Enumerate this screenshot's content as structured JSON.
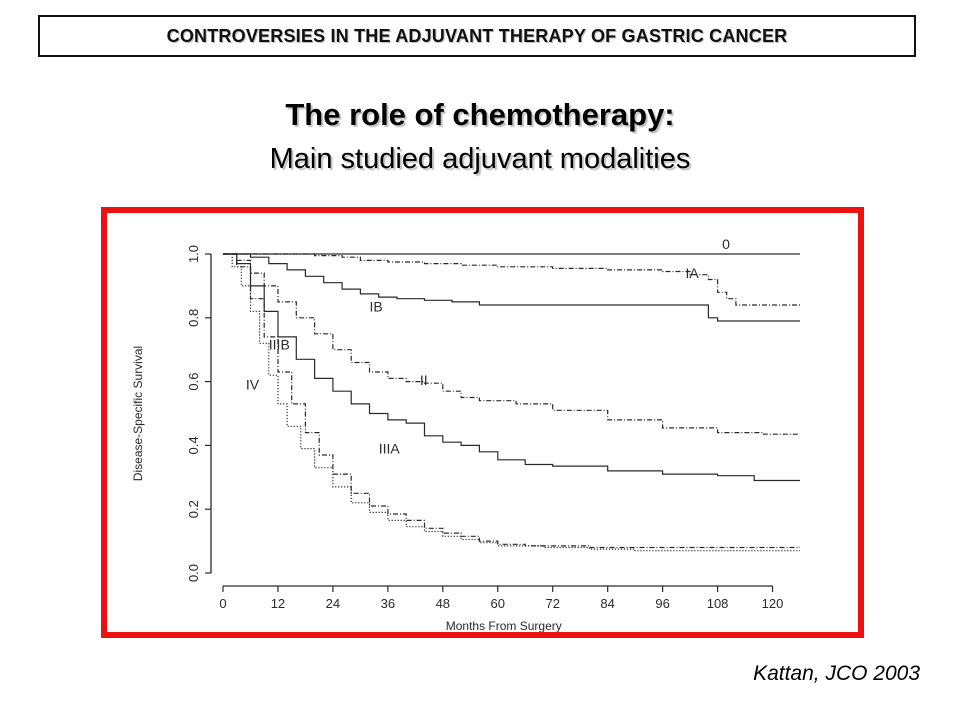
{
  "header": {
    "text": "CONTROVERSIES IN THE ADJUVANT THERAPY OF GASTRIC CANCER"
  },
  "title": "The role of chemotherapy:",
  "subtitle": "Main studied adjuvant modalities",
  "citation": "Kattan, JCO 2003",
  "chart_data": {
    "type": "line",
    "xlabel": "Months From Surgery",
    "ylabel": "Disease-Specific Survival",
    "xlim": [
      0,
      126
    ],
    "ylim": [
      0,
      1.0
    ],
    "x_ticks": [
      0,
      12,
      24,
      36,
      48,
      60,
      72,
      84,
      96,
      108,
      120
    ],
    "y_ticks": [
      "0.0",
      "0.2",
      "0.4",
      "0.6",
      "0.8",
      "1.0"
    ],
    "grid": false,
    "series": [
      {
        "name": "0",
        "style": "solid",
        "points": [
          [
            0,
            1.0
          ],
          [
            126,
            1.0
          ]
        ]
      },
      {
        "name": "IA",
        "style": "dashdot",
        "points": [
          [
            0,
            1.0
          ],
          [
            20,
            0.995
          ],
          [
            26,
            0.99
          ],
          [
            30,
            0.98
          ],
          [
            36,
            0.975
          ],
          [
            44,
            0.97
          ],
          [
            52,
            0.965
          ],
          [
            60,
            0.96
          ],
          [
            72,
            0.955
          ],
          [
            84,
            0.95
          ],
          [
            96,
            0.945
          ],
          [
            102,
            0.935
          ],
          [
            106,
            0.92
          ],
          [
            108,
            0.88
          ],
          [
            110,
            0.86
          ],
          [
            112,
            0.84
          ],
          [
            126,
            0.84
          ]
        ]
      },
      {
        "name": "IB",
        "style": "solid",
        "points": [
          [
            0,
            1.0
          ],
          [
            6,
            0.99
          ],
          [
            10,
            0.97
          ],
          [
            14,
            0.95
          ],
          [
            18,
            0.93
          ],
          [
            22,
            0.91
          ],
          [
            26,
            0.89
          ],
          [
            30,
            0.875
          ],
          [
            34,
            0.865
          ],
          [
            38,
            0.86
          ],
          [
            44,
            0.855
          ],
          [
            50,
            0.85
          ],
          [
            56,
            0.84
          ],
          [
            70,
            0.84
          ],
          [
            84,
            0.84
          ],
          [
            104,
            0.84
          ],
          [
            106,
            0.8
          ],
          [
            108,
            0.79
          ],
          [
            126,
            0.79
          ]
        ]
      },
      {
        "name": "II",
        "style": "dashdot",
        "points": [
          [
            0,
            1.0
          ],
          [
            3,
            0.98
          ],
          [
            6,
            0.94
          ],
          [
            9,
            0.9
          ],
          [
            12,
            0.85
          ],
          [
            16,
            0.8
          ],
          [
            20,
            0.75
          ],
          [
            24,
            0.7
          ],
          [
            28,
            0.66
          ],
          [
            32,
            0.63
          ],
          [
            36,
            0.61
          ],
          [
            40,
            0.6
          ],
          [
            44,
            0.595
          ],
          [
            48,
            0.57
          ],
          [
            52,
            0.55
          ],
          [
            56,
            0.54
          ],
          [
            64,
            0.53
          ],
          [
            72,
            0.51
          ],
          [
            84,
            0.48
          ],
          [
            96,
            0.455
          ],
          [
            108,
            0.44
          ],
          [
            118,
            0.435
          ],
          [
            126,
            0.435
          ]
        ]
      },
      {
        "name": "IIIA",
        "style": "solid",
        "points": [
          [
            0,
            1.0
          ],
          [
            3,
            0.97
          ],
          [
            6,
            0.9
          ],
          [
            9,
            0.82
          ],
          [
            12,
            0.74
          ],
          [
            16,
            0.67
          ],
          [
            20,
            0.61
          ],
          [
            24,
            0.57
          ],
          [
            28,
            0.53
          ],
          [
            32,
            0.5
          ],
          [
            36,
            0.48
          ],
          [
            40,
            0.47
          ],
          [
            44,
            0.43
          ],
          [
            48,
            0.41
          ],
          [
            52,
            0.4
          ],
          [
            56,
            0.38
          ],
          [
            60,
            0.355
          ],
          [
            66,
            0.34
          ],
          [
            72,
            0.335
          ],
          [
            84,
            0.32
          ],
          [
            96,
            0.31
          ],
          [
            108,
            0.305
          ],
          [
            116,
            0.29
          ],
          [
            126,
            0.29
          ]
        ]
      },
      {
        "name": "IIIB",
        "style": "dashdot",
        "points": [
          [
            0,
            1.0
          ],
          [
            3,
            0.96
          ],
          [
            6,
            0.86
          ],
          [
            9,
            0.74
          ],
          [
            12,
            0.63
          ],
          [
            15,
            0.53
          ],
          [
            18,
            0.44
          ],
          [
            21,
            0.37
          ],
          [
            24,
            0.31
          ],
          [
            28,
            0.25
          ],
          [
            32,
            0.21
          ],
          [
            36,
            0.185
          ],
          [
            40,
            0.165
          ],
          [
            44,
            0.14
          ],
          [
            48,
            0.125
          ],
          [
            52,
            0.115
          ],
          [
            56,
            0.1
          ],
          [
            60,
            0.09
          ],
          [
            66,
            0.085
          ],
          [
            80,
            0.08
          ],
          [
            100,
            0.08
          ],
          [
            126,
            0.08
          ]
        ]
      },
      {
        "name": "IV",
        "style": "dotted",
        "points": [
          [
            0,
            1.0
          ],
          [
            2,
            0.96
          ],
          [
            4,
            0.9
          ],
          [
            6,
            0.82
          ],
          [
            8,
            0.72
          ],
          [
            10,
            0.62
          ],
          [
            12,
            0.53
          ],
          [
            14,
            0.46
          ],
          [
            17,
            0.39
          ],
          [
            20,
            0.33
          ],
          [
            24,
            0.27
          ],
          [
            28,
            0.22
          ],
          [
            32,
            0.19
          ],
          [
            36,
            0.165
          ],
          [
            40,
            0.145
          ],
          [
            44,
            0.13
          ],
          [
            48,
            0.115
          ],
          [
            52,
            0.105
          ],
          [
            56,
            0.095
          ],
          [
            60,
            0.085
          ],
          [
            70,
            0.08
          ],
          [
            80,
            0.075
          ],
          [
            90,
            0.07
          ],
          [
            126,
            0.07
          ]
        ]
      }
    ],
    "annotations": [
      {
        "text": "0",
        "x": 109,
        "y": 1.015
      },
      {
        "text": "IA",
        "x": 101,
        "y": 0.925
      },
      {
        "text": "IB",
        "x": 32,
        "y": 0.82
      },
      {
        "text": "IIIB",
        "x": 10,
        "y": 0.7
      },
      {
        "text": "II",
        "x": 43,
        "y": 0.59
      },
      {
        "text": "IV",
        "x": 5,
        "y": 0.575
      },
      {
        "text": "IIIA",
        "x": 34,
        "y": 0.375
      }
    ]
  }
}
